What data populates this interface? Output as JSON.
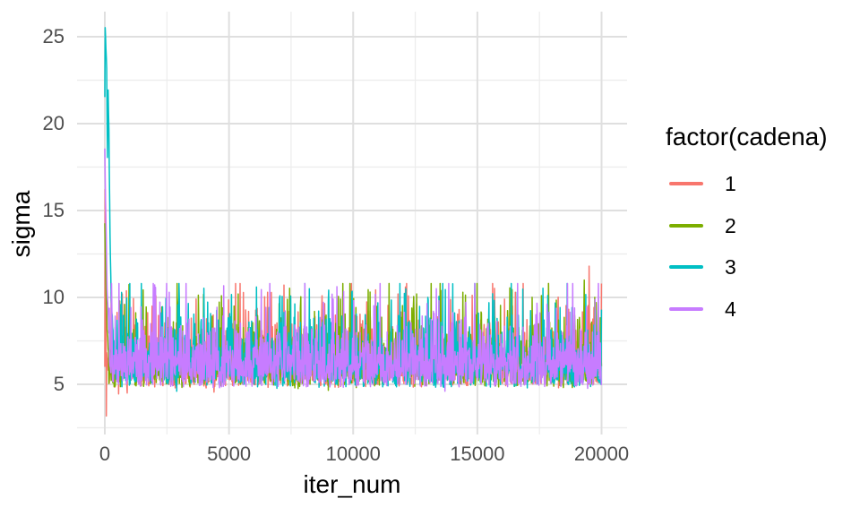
{
  "figure": {
    "background": "#FFFFFF",
    "grid_major_color": "#DFDFDF",
    "grid_minor_color": "#ECECEC",
    "tick_label_color": "#4D4D4D",
    "title_color": "#000000"
  },
  "y_axis": {
    "title": "sigma",
    "ticks": [
      25,
      20,
      15,
      10,
      5
    ],
    "minor_ticks": [
      22.5,
      17.5,
      12.5,
      7.5,
      2.5
    ]
  },
  "x_axis": {
    "title": "iter_num",
    "ticks": [
      0,
      5000,
      10000,
      15000,
      20000
    ],
    "minor_ticks": [
      2500,
      7500,
      12500,
      17500
    ]
  },
  "legend": {
    "title": "factor(cadena)",
    "items": [
      {
        "label": "1",
        "color": "#F8766D"
      },
      {
        "label": "2",
        "color": "#7CAE00"
      },
      {
        "label": "3",
        "color": "#00BFC4"
      },
      {
        "label": "4",
        "color": "#C77CFF"
      }
    ]
  },
  "chart_data": {
    "type": "line",
    "title": "",
    "xlabel": "iter_num",
    "ylabel": "sigma",
    "x_range": [
      0,
      20000
    ],
    "y_axis_ticks": [
      5,
      10,
      15,
      20,
      25
    ],
    "x_axis_ticks": [
      0,
      5000,
      10000,
      15000,
      20000
    ],
    "y_visible_extent": [
      3.0,
      25.4
    ],
    "grid": true,
    "legend_position": "right",
    "legend_title": "factor(cadena)",
    "sample_step": 15,
    "stationary": {
      "base": 4.75,
      "gamma_scale": 0.85,
      "mean": 6.45,
      "typical_band": [
        5.2,
        8.3
      ],
      "clamp": [
        4.5,
        10.8
      ]
    },
    "series": [
      {
        "name": "1",
        "color": "#F8766D",
        "seed": 11,
        "burn_in": [
          [
            0,
            6.0
          ],
          [
            15,
            16.2
          ],
          [
            45,
            12.0
          ],
          [
            60,
            3.0
          ],
          [
            75,
            6.8
          ],
          [
            120,
            6.3
          ]
        ],
        "spikes": [
          [
            250,
            10.3
          ],
          [
            555,
            4.45
          ],
          [
            700,
            10.2
          ],
          [
            900,
            4.5
          ],
          [
            2050,
            10.1
          ],
          [
            4400,
            4.55
          ],
          [
            6550,
            10.3
          ],
          [
            8750,
            10.1
          ],
          [
            11800,
            10.2
          ],
          [
            12100,
            10.6
          ],
          [
            16100,
            9.9
          ],
          [
            19500,
            11.8
          ]
        ]
      },
      {
        "name": "2",
        "color": "#7CAE00",
        "seed": 22,
        "burn_in": [
          [
            0,
            14.2
          ],
          [
            45,
            11.0
          ],
          [
            90,
            8.2
          ],
          [
            150,
            7.0
          ]
        ],
        "spikes": [
          [
            600,
            9.8
          ],
          [
            4700,
            10.1
          ],
          [
            9000,
            4.65
          ],
          [
            9500,
            9.9
          ],
          [
            12550,
            10.2
          ],
          [
            16400,
            10.45
          ],
          [
            19300,
            11.0
          ]
        ]
      },
      {
        "name": "3",
        "color": "#00BFC4",
        "seed": 33,
        "burn_in": [
          [
            0,
            21.5
          ],
          [
            15,
            25.4
          ],
          [
            45,
            24.6
          ],
          [
            75,
            23.0
          ],
          [
            105,
            18.0
          ],
          [
            135,
            21.7
          ],
          [
            165,
            19.5
          ],
          [
            210,
            13.5
          ],
          [
            255,
            10.0
          ],
          [
            330,
            8.0
          ]
        ],
        "spikes": [
          [
            2900,
            4.6
          ],
          [
            3000,
            9.9
          ],
          [
            6100,
            10.6
          ],
          [
            9000,
            9.8
          ],
          [
            13000,
            10.0
          ],
          [
            16600,
            10.3
          ],
          [
            19995,
            9.3
          ]
        ]
      },
      {
        "name": "4",
        "color": "#C77CFF",
        "seed": 44,
        "burn_in": [
          [
            0,
            18.4
          ],
          [
            45,
            14.5
          ],
          [
            90,
            10.5
          ],
          [
            165,
            8.2
          ]
        ],
        "spikes": [
          [
            2600,
            10.3
          ],
          [
            6300,
            10.45
          ],
          [
            9200,
            9.9
          ],
          [
            13350,
            10.5
          ],
          [
            13700,
            4.6
          ],
          [
            17800,
            9.6
          ]
        ]
      }
    ]
  }
}
